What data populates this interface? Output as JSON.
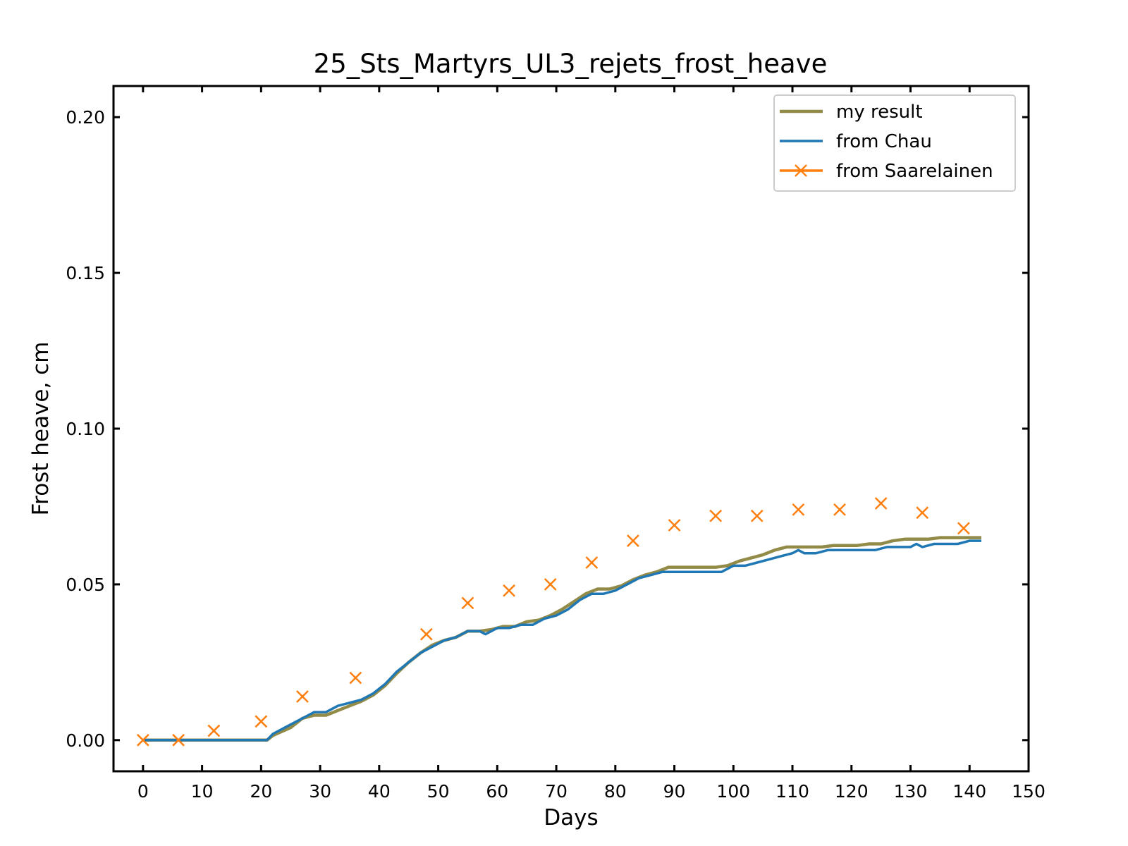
{
  "chart_data": {
    "type": "line",
    "title": "25_Sts_Martyrs_UL3_rejets_frost_heave",
    "xlabel": "Days",
    "ylabel": "Frost heave, cm",
    "xlim": [
      -5,
      150
    ],
    "ylim": [
      -0.01,
      0.21
    ],
    "xticks": [
      0,
      10,
      20,
      30,
      40,
      50,
      60,
      70,
      80,
      90,
      100,
      110,
      120,
      130,
      140,
      150
    ],
    "yticks": [
      0.0,
      0.05,
      0.1,
      0.15,
      0.2
    ],
    "xtick_labels": [
      "0",
      "10",
      "20",
      "30",
      "40",
      "50",
      "60",
      "70",
      "80",
      "90",
      "100",
      "110",
      "120",
      "130",
      "140",
      "150"
    ],
    "ytick_labels": [
      "0.00",
      "0.05",
      "0.10",
      "0.15",
      "0.20"
    ],
    "grid": false,
    "legend_position": "top-right",
    "series": [
      {
        "name": "my result",
        "style": "line",
        "color": "#928b48",
        "x": [
          0,
          21,
          22,
          25,
          27,
          29,
          31,
          33,
          35,
          37,
          39,
          41,
          43,
          45,
          47,
          49,
          51,
          53,
          55,
          57,
          59,
          61,
          63,
          65,
          67,
          69,
          71,
          73,
          75,
          77,
          79,
          81,
          83,
          85,
          87,
          89,
          91,
          93,
          95,
          97,
          99,
          101,
          103,
          105,
          107,
          109,
          111,
          113,
          115,
          117,
          119,
          121,
          123,
          125,
          127,
          129,
          131,
          133,
          135,
          137,
          139,
          142
        ],
        "y": [
          0.0,
          0.0,
          0.0015,
          0.004,
          0.007,
          0.008,
          0.008,
          0.0095,
          0.011,
          0.0125,
          0.0145,
          0.0175,
          0.0215,
          0.025,
          0.028,
          0.0305,
          0.032,
          0.033,
          0.035,
          0.035,
          0.0355,
          0.0365,
          0.0365,
          0.038,
          0.0385,
          0.04,
          0.042,
          0.0445,
          0.047,
          0.0485,
          0.0485,
          0.0495,
          0.0515,
          0.053,
          0.054,
          0.0555,
          0.0555,
          0.0555,
          0.0555,
          0.0555,
          0.056,
          0.0575,
          0.0585,
          0.0595,
          0.061,
          0.062,
          0.062,
          0.062,
          0.062,
          0.0625,
          0.0625,
          0.0625,
          0.063,
          0.063,
          0.064,
          0.0645,
          0.0645,
          0.0645,
          0.065,
          0.065,
          0.065,
          0.065
        ]
      },
      {
        "name": "from Chau",
        "style": "line",
        "color": "#1f77b4",
        "x": [
          0,
          21,
          22,
          24,
          26,
          28,
          29,
          31,
          33,
          35,
          37,
          39,
          41,
          43,
          45,
          47,
          49,
          51,
          53,
          55,
          57,
          58,
          60,
          62,
          64,
          66,
          68,
          70,
          72,
          74,
          76,
          78,
          80,
          82,
          84,
          86,
          88,
          90,
          92,
          94,
          96,
          98,
          100,
          102,
          104,
          106,
          108,
          110,
          111,
          112,
          114,
          116,
          118,
          120,
          122,
          124,
          126,
          128,
          130,
          131,
          132,
          134,
          136,
          138,
          140,
          142
        ],
        "y": [
          0.0,
          0.0,
          0.002,
          0.004,
          0.006,
          0.008,
          0.009,
          0.009,
          0.011,
          0.012,
          0.013,
          0.015,
          0.018,
          0.022,
          0.025,
          0.028,
          0.03,
          0.032,
          0.033,
          0.035,
          0.035,
          0.034,
          0.036,
          0.036,
          0.037,
          0.037,
          0.039,
          0.04,
          0.042,
          0.045,
          0.047,
          0.047,
          0.048,
          0.05,
          0.052,
          0.053,
          0.054,
          0.054,
          0.054,
          0.054,
          0.054,
          0.054,
          0.056,
          0.056,
          0.057,
          0.058,
          0.059,
          0.06,
          0.061,
          0.06,
          0.06,
          0.061,
          0.061,
          0.061,
          0.061,
          0.061,
          0.062,
          0.062,
          0.062,
          0.063,
          0.062,
          0.063,
          0.063,
          0.063,
          0.064,
          0.064
        ]
      },
      {
        "name": "from Saarelainen",
        "style": "markers",
        "color": "#ff7f0e",
        "x": [
          0,
          6,
          12,
          20,
          27,
          36,
          48,
          55,
          62,
          69,
          76,
          83,
          90,
          97,
          104,
          111,
          118,
          125,
          132,
          139
        ],
        "y": [
          0.0,
          0.0,
          0.003,
          0.006,
          0.014,
          0.02,
          0.034,
          0.044,
          0.048,
          0.05,
          0.057,
          0.064,
          0.069,
          0.072,
          0.072,
          0.074,
          0.074,
          0.076,
          0.073,
          0.068
        ]
      }
    ]
  }
}
